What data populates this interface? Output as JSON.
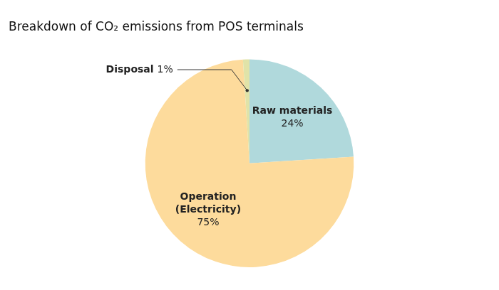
{
  "chart_data": {
    "type": "pie",
    "title": "Breakdown of CO₂ emissions from POS terminals",
    "categories": [
      "Raw materials",
      "Operation (Electricity)",
      "Disposal"
    ],
    "values": [
      24,
      75,
      1
    ],
    "value_labels": [
      "24%",
      "75%",
      "1%"
    ],
    "colors": [
      "#b0d9dc",
      "#fddb9c",
      "#e0e3a8"
    ],
    "data_labels": true
  }
}
